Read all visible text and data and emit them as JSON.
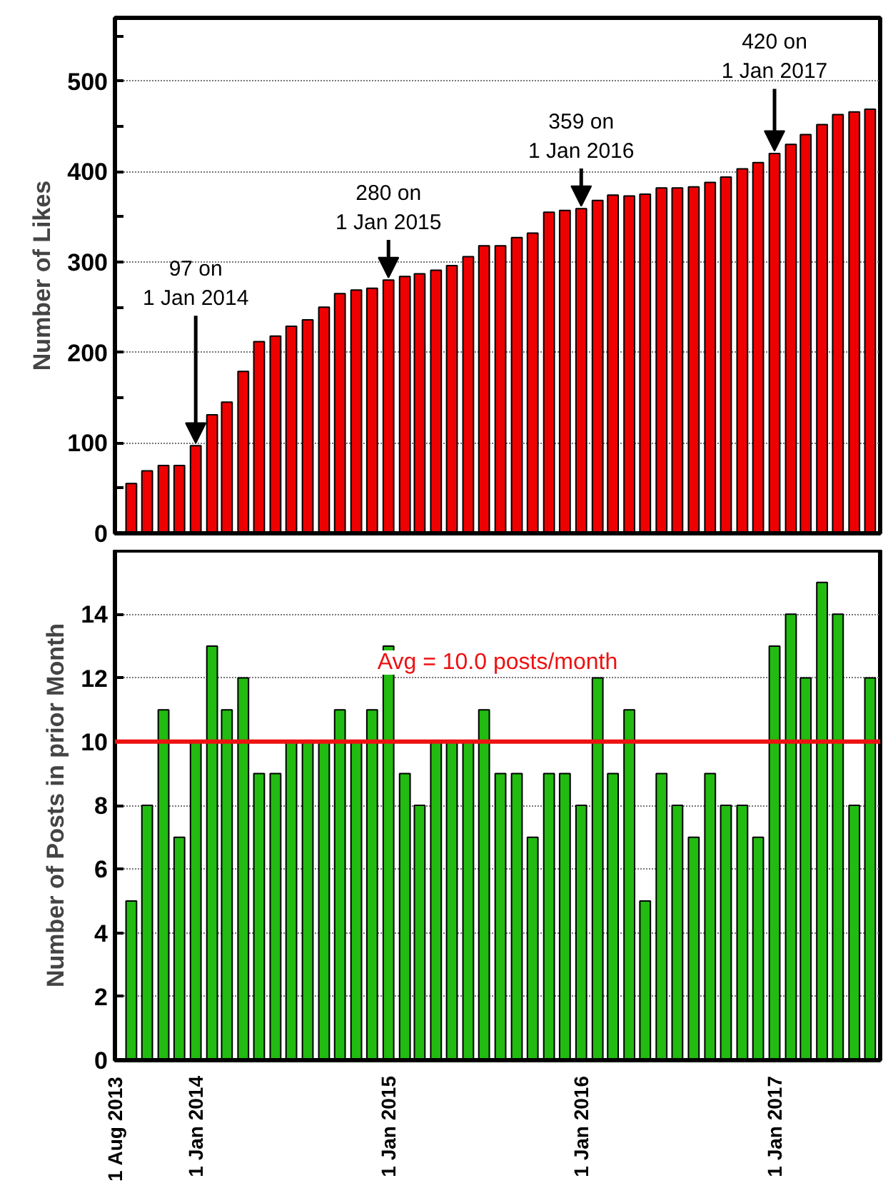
{
  "chart_data": [
    {
      "type": "bar",
      "ylabel": "Number of Likes",
      "color": "#ee0000",
      "x": [
        "2013-09",
        "2013-10",
        "2013-11",
        "2013-12",
        "2014-01",
        "2014-02",
        "2014-03",
        "2014-04",
        "2014-05",
        "2014-06",
        "2014-07",
        "2014-08",
        "2014-09",
        "2014-10",
        "2014-11",
        "2014-12",
        "2015-01",
        "2015-02",
        "2015-03",
        "2015-04",
        "2015-05",
        "2015-06",
        "2015-07",
        "2015-08",
        "2015-09",
        "2015-10",
        "2015-11",
        "2015-12",
        "2016-01",
        "2016-02",
        "2016-03",
        "2016-04",
        "2016-05",
        "2016-06",
        "2016-07",
        "2016-08",
        "2016-09",
        "2016-10",
        "2016-11",
        "2016-12",
        "2017-01",
        "2017-02",
        "2017-03",
        "2017-04",
        "2017-05",
        "2017-06",
        "2017-07"
      ],
      "values": [
        55,
        69,
        75,
        75,
        97,
        131,
        145,
        179,
        212,
        218,
        229,
        236,
        250,
        265,
        269,
        271,
        280,
        284,
        287,
        291,
        296,
        306,
        318,
        318,
        327,
        332,
        355,
        357,
        359,
        368,
        374,
        373,
        375,
        382,
        382,
        383,
        388,
        394,
        403,
        410,
        420,
        430,
        441,
        452,
        463,
        466,
        469
      ],
      "xlim": [
        "2013-08-01",
        "2017-07-20"
      ],
      "ylim": [
        0,
        570
      ],
      "yticks": [
        0,
        {
          "value": 50,
          "label": null
        },
        100,
        {
          "value": 150,
          "label": null
        },
        200,
        {
          "value": 250,
          "label": null
        },
        300,
        {
          "value": 350,
          "label": null
        },
        400,
        {
          "value": 450,
          "label": null
        },
        500,
        {
          "value": 550,
          "label": null
        }
      ],
      "tick_labels": "y",
      "grid": "y",
      "annotations": [
        {
          "text": "97 on\n1 Jan 2014",
          "x": "2014-01",
          "y": 97
        },
        {
          "text": "280 on\n1 Jan 2015",
          "x": "2015-01",
          "y": 280
        },
        {
          "text": "359 on\n1 Jan 2016",
          "x": "2016-01",
          "y": 359
        },
        {
          "text": "420 on\n1 Jan 2017",
          "x": "2017-01",
          "y": 420
        }
      ]
    },
    {
      "type": "bar",
      "ylabel": "Number of Posts in prior Month",
      "color": "#22bb11",
      "x": [
        "2013-09",
        "2013-10",
        "2013-11",
        "2013-12",
        "2014-01",
        "2014-02",
        "2014-03",
        "2014-04",
        "2014-05",
        "2014-06",
        "2014-07",
        "2014-08",
        "2014-09",
        "2014-10",
        "2014-11",
        "2014-12",
        "2015-01",
        "2015-02",
        "2015-03",
        "2015-04",
        "2015-05",
        "2015-06",
        "2015-07",
        "2015-08",
        "2015-09",
        "2015-10",
        "2015-11",
        "2015-12",
        "2016-01",
        "2016-02",
        "2016-03",
        "2016-04",
        "2016-05",
        "2016-06",
        "2016-07",
        "2016-08",
        "2016-09",
        "2016-10",
        "2016-11",
        "2016-12",
        "2017-01",
        "2017-02",
        "2017-03",
        "2017-04",
        "2017-05",
        "2017-06",
        "2017-07"
      ],
      "values": [
        5,
        8,
        11,
        7,
        10,
        13,
        11,
        12,
        9,
        9,
        10,
        10,
        10,
        11,
        10,
        11,
        13,
        9,
        8,
        10,
        10,
        10,
        11,
        9,
        9,
        7,
        9,
        9,
        8,
        12,
        9,
        11,
        5,
        9,
        8,
        7,
        9,
        8,
        8,
        7,
        13,
        14,
        12,
        15,
        14,
        8,
        12
      ],
      "xlim": [
        "2013-08-01",
        "2017-07-20"
      ],
      "ylim": [
        0,
        16
      ],
      "yticks": [
        0,
        2,
        4,
        6,
        8,
        10,
        12,
        14
      ],
      "xticks": [
        {
          "value": "2013-08-01",
          "label": "1 Aug 2013"
        },
        {
          "value": "2014-01-01",
          "label": "1 Jan 2014"
        },
        {
          "value": "2015-01-01",
          "label": "1 Jan 2015"
        },
        {
          "value": "2016-01-01",
          "label": "1 Jan 2016"
        },
        {
          "value": "2017-01-01",
          "label": "1 Jan 2017"
        }
      ],
      "grid": "y",
      "ref_lines": [
        {
          "axis": "y",
          "value": 10,
          "label": "Avg = 10.0 posts/month",
          "color": "#ee1111",
          "line_style": "solid"
        }
      ]
    }
  ]
}
